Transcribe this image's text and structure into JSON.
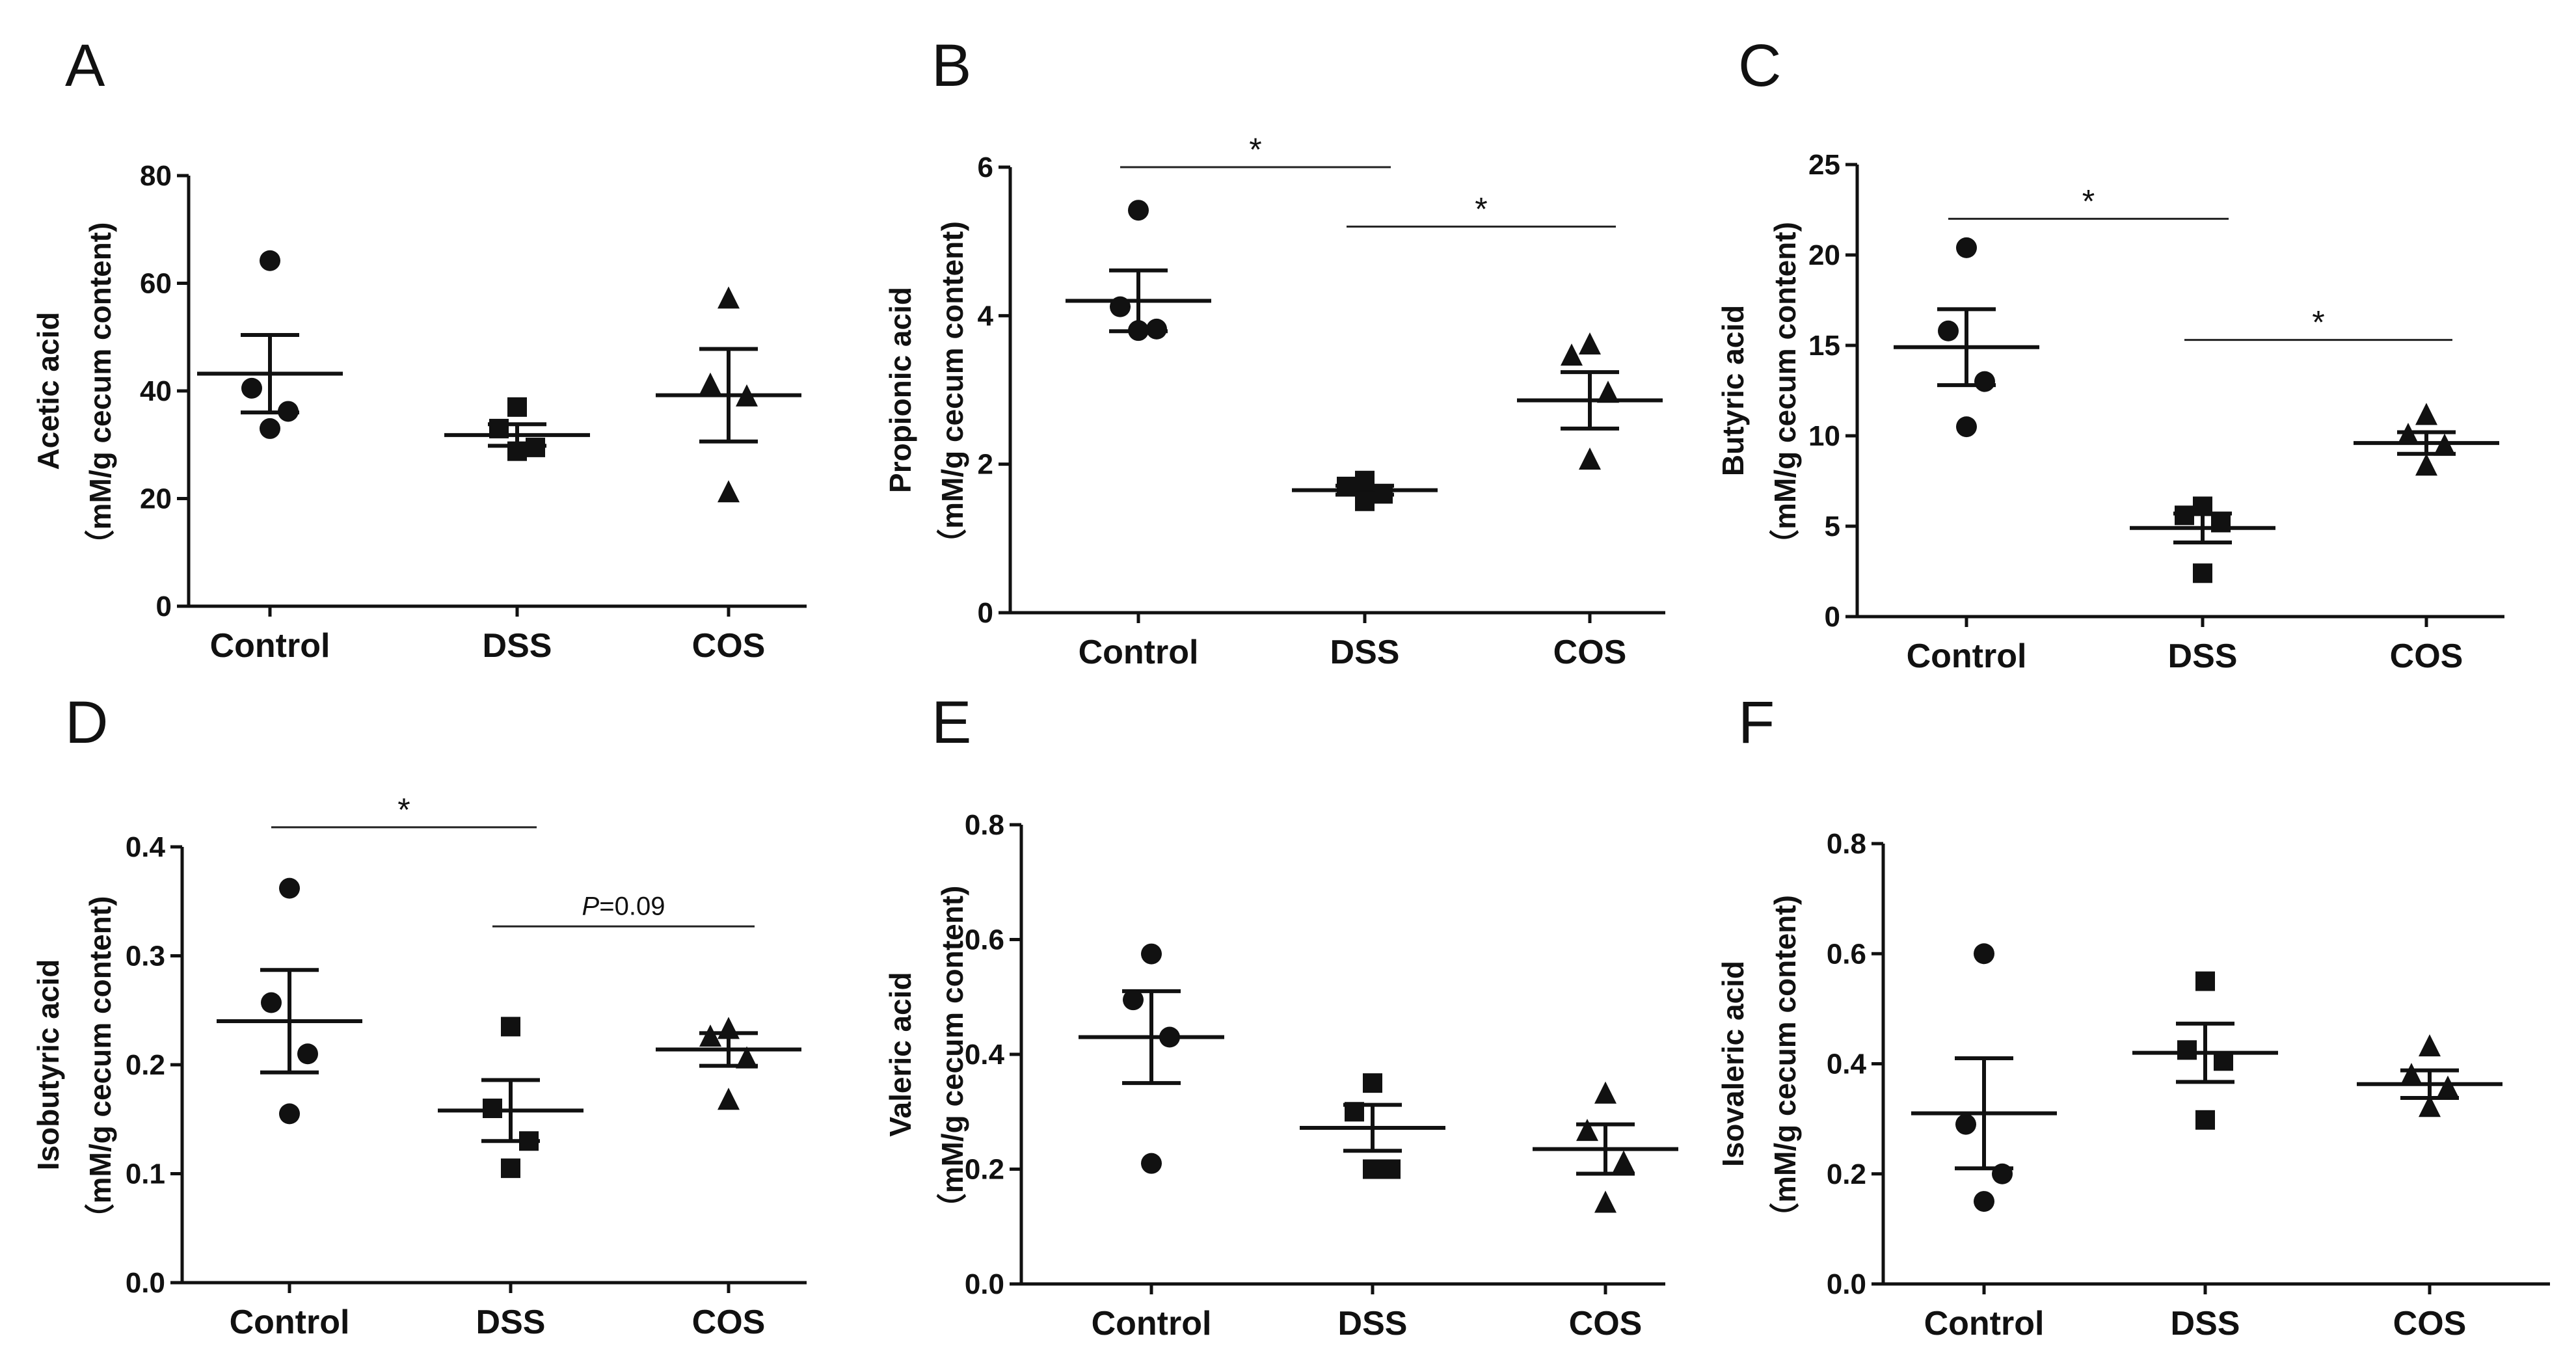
{
  "chart_data": [
    {
      "type": "scatter",
      "panel": "A",
      "ylabel": [
        "Acetic acid",
        "（mM/g cecum content)"
      ],
      "ylim": [
        0,
        80
      ],
      "yticks": [
        0,
        20,
        40,
        60,
        80
      ],
      "yticklabels": [
        "0",
        "20",
        "40",
        "60",
        "80"
      ],
      "categories": [
        "Control",
        "DSS",
        "COS"
      ],
      "markers": [
        "circle",
        "square",
        "triangle"
      ],
      "points": [
        [
          64.2,
          40.5,
          36.2,
          33.0
        ],
        [
          37.0,
          33.0,
          29.5,
          28.8
        ],
        [
          57.0,
          41.0,
          38.8,
          21.0
        ]
      ],
      "mean": [
        43.2,
        31.8,
        39.2
      ],
      "sem": [
        7.2,
        2.0,
        8.6
      ],
      "significance": []
    },
    {
      "type": "scatter",
      "panel": "B",
      "ylabel": [
        "Propionic acid",
        "（mM/g cecum content)"
      ],
      "ylim": [
        0,
        6
      ],
      "yticks": [
        0,
        2,
        4,
        6
      ],
      "yticklabels": [
        "0",
        "2",
        "4",
        "6"
      ],
      "categories": [
        "Control",
        "DSS",
        "COS"
      ],
      "markers": [
        "circle",
        "square",
        "triangle"
      ],
      "points": [
        [
          5.42,
          4.12,
          3.82,
          3.8
        ],
        [
          1.78,
          1.7,
          1.6,
          1.5
        ],
        [
          3.6,
          3.45,
          2.95,
          2.05
        ]
      ],
      "mean": [
        4.2,
        1.65,
        2.86
      ],
      "sem": [
        0.41,
        0.06,
        0.38
      ],
      "significance": [
        {
          "from": 0,
          "to": 1,
          "label": "*",
          "y": 6.0
        },
        {
          "from": 1,
          "to": 2,
          "label": "*",
          "y": 5.2
        }
      ]
    },
    {
      "type": "scatter",
      "panel": "C",
      "ylabel": [
        "Butyric acid",
        "（mM/g cecum content)"
      ],
      "ylim": [
        0,
        25
      ],
      "yticks": [
        0,
        5,
        10,
        15,
        20,
        25
      ],
      "yticklabels": [
        "0",
        "5",
        "10",
        "15",
        "20",
        "25"
      ],
      "categories": [
        "Control",
        "DSS",
        "COS"
      ],
      "markers": [
        "circle",
        "square",
        "triangle"
      ],
      "points": [
        [
          20.4,
          15.8,
          13.0,
          10.5
        ],
        [
          6.1,
          5.6,
          5.2,
          2.4
        ],
        [
          11.1,
          10.0,
          9.4,
          8.3
        ]
      ],
      "mean": [
        14.9,
        4.9,
        9.6
      ],
      "sem": [
        2.1,
        0.8,
        0.6
      ],
      "significance": [
        {
          "from": 0,
          "to": 1,
          "label": "*",
          "y": 22.0
        },
        {
          "from": 1,
          "to": 2,
          "label": "*",
          "y": 15.3
        }
      ]
    },
    {
      "type": "scatter",
      "panel": "D",
      "ylabel": [
        "Isobutyric acid",
        "（mM/g cecum content)"
      ],
      "ylim": [
        0.0,
        0.4
      ],
      "yticks": [
        0.0,
        0.1,
        0.2,
        0.3,
        0.4
      ],
      "yticklabels": [
        "0.0",
        "0.1",
        "0.2",
        "0.3",
        "0.4"
      ],
      "categories": [
        "Control",
        "DSS",
        "COS"
      ],
      "markers": [
        "circle",
        "square",
        "triangle"
      ],
      "points": [
        [
          0.362,
          0.257,
          0.21,
          0.155
        ],
        [
          0.235,
          0.16,
          0.13,
          0.105
        ],
        [
          0.232,
          0.225,
          0.205,
          0.167
        ]
      ],
      "mean": [
        0.24,
        0.158,
        0.214
      ],
      "sem": [
        0.047,
        0.028,
        0.015
      ],
      "significance": [
        {
          "from": 0,
          "to": 1,
          "label": "*",
          "y": 0.418
        },
        {
          "from": 1,
          "to": 2,
          "label_prefix": "P",
          "label": "=0.09",
          "y": 0.327
        }
      ]
    },
    {
      "type": "scatter",
      "panel": "E",
      "ylabel": [
        "Valeric acid",
        "（mM/g cecum content)"
      ],
      "ylim": [
        0.0,
        0.8
      ],
      "yticks": [
        0.0,
        0.2,
        0.4,
        0.6,
        0.8
      ],
      "yticklabels": [
        "0.0",
        "0.2",
        "0.4",
        "0.6",
        "0.8"
      ],
      "categories": [
        "Control",
        "DSS",
        "COS"
      ],
      "markers": [
        "circle",
        "square",
        "triangle"
      ],
      "points": [
        [
          0.575,
          0.495,
          0.43,
          0.21
        ],
        [
          0.35,
          0.3,
          0.2,
          0.2
        ],
        [
          0.33,
          0.265,
          0.21,
          0.14
        ]
      ],
      "mean": [
        0.43,
        0.272,
        0.235
      ],
      "sem": [
        0.08,
        0.04,
        0.043
      ],
      "significance": []
    },
    {
      "type": "scatter",
      "panel": "F",
      "ylabel": [
        "Isovaleric acid",
        "（mM/g cecum content)"
      ],
      "ylim": [
        0.0,
        0.8
      ],
      "yticks": [
        0.0,
        0.2,
        0.4,
        0.6,
        0.8
      ],
      "yticklabels": [
        "0.0",
        "0.2",
        "0.4",
        "0.6",
        "0.8"
      ],
      "categories": [
        "Control",
        "DSS",
        "COS"
      ],
      "markers": [
        "circle",
        "square",
        "triangle"
      ],
      "points": [
        [
          0.6,
          0.29,
          0.2,
          0.15
        ],
        [
          0.55,
          0.425,
          0.405,
          0.298
        ],
        [
          0.43,
          0.378,
          0.355,
          0.32
        ]
      ],
      "mean": [
        0.31,
        0.42,
        0.363
      ],
      "sem": [
        0.1,
        0.053,
        0.025
      ],
      "significance": []
    }
  ]
}
